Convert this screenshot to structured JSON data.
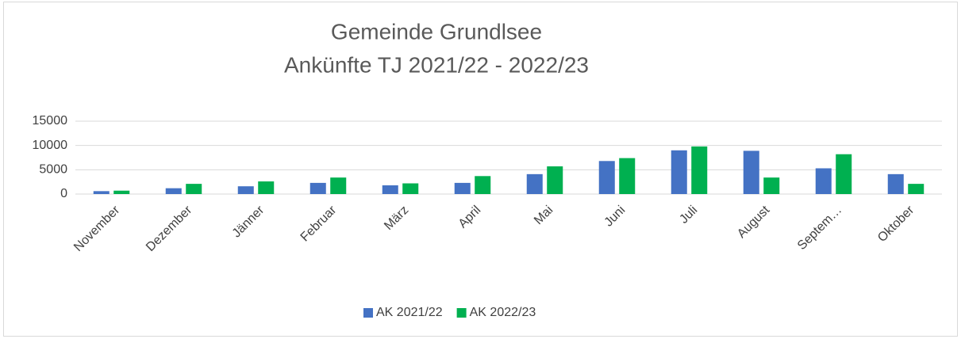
{
  "chart_data": {
    "type": "bar",
    "title": [
      "Gemeinde Grundlsee",
      "Ankünfte TJ 2021/22 - 2022/23"
    ],
    "categories": [
      "November",
      "Dezember",
      "Jänner",
      "Februar",
      "März",
      "April",
      "Mai",
      "Juni",
      "Juli",
      "August",
      "Septem…",
      "Oktober"
    ],
    "series": [
      {
        "name": "AK 2021/22",
        "color": "#4472c4",
        "values": [
          600,
          1200,
          1600,
          2300,
          1800,
          2300,
          4100,
          6800,
          9000,
          8900,
          5300,
          4100
        ]
      },
      {
        "name": "AK 2022/23",
        "color": "#00b050",
        "values": [
          700,
          2100,
          2600,
          3400,
          2200,
          3700,
          5700,
          7400,
          9800,
          3400,
          8200,
          2100
        ]
      }
    ],
    "ylim": [
      0,
      15000
    ],
    "yticks": [
      0,
      5000,
      10000,
      15000
    ],
    "grid": true,
    "legend": "bottom"
  }
}
